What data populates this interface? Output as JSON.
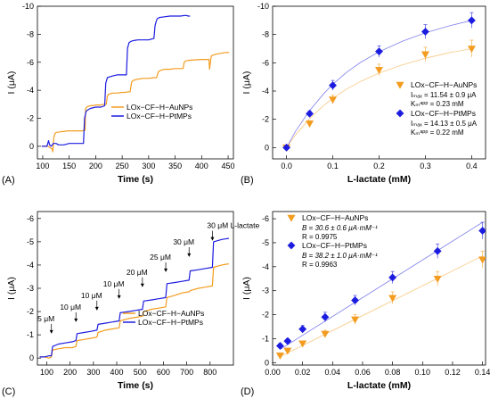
{
  "chart_data": [
    {
      "id": "A",
      "panel_label": "(A)",
      "type": "line",
      "xlabel": "Time (s)",
      "ylabel": "I (μA)",
      "xlim": [
        90,
        460
      ],
      "ylim": [
        -10,
        0.9
      ],
      "y_reversed": true,
      "xticks": [
        100,
        150,
        200,
        250,
        300,
        350,
        400,
        450
      ],
      "yticks": [
        -10,
        -8,
        -6,
        -4,
        -2,
        0
      ],
      "series": [
        {
          "name": "LOx−CF−H−AuNPs",
          "color": "#f39c1f",
          "x": [
            98,
            110,
            118,
            119,
            121,
            123,
            126,
            130,
            135,
            140,
            145,
            150,
            155,
            160,
            165,
            170,
            175,
            180,
            181,
            183,
            186,
            190,
            195,
            200,
            210,
            215,
            220,
            222,
            224,
            227,
            232,
            240,
            250,
            255,
            265,
            268,
            271,
            275,
            280,
            290,
            300,
            310,
            315,
            318,
            321,
            325,
            330,
            340,
            350,
            360,
            365,
            367,
            370,
            380,
            400,
            414,
            415,
            418,
            420,
            430,
            445,
            452
          ],
          "y": [
            0,
            0,
            0.2,
            0.4,
            -0.6,
            -0.9,
            -1.0,
            -1.0,
            -1.05,
            -1.05,
            -1.1,
            -1.1,
            -1.1,
            -1.1,
            -1.1,
            -1.1,
            -1.1,
            -1.15,
            -2.7,
            -2.8,
            -2.85,
            -2.9,
            -2.9,
            -2.95,
            -2.95,
            -3.0,
            -3.0,
            -3.6,
            -3.7,
            -3.75,
            -3.8,
            -3.8,
            -3.85,
            -3.85,
            -3.9,
            -4.6,
            -4.7,
            -4.75,
            -4.8,
            -4.85,
            -4.85,
            -4.9,
            -4.9,
            -5.3,
            -5.4,
            -5.45,
            -5.5,
            -5.5,
            -5.55,
            -5.55,
            -5.55,
            -6.0,
            -6.1,
            -6.15,
            -6.2,
            -6.2,
            -5.5,
            -6.4,
            -6.5,
            -6.6,
            -6.7,
            -6.7
          ]
        },
        {
          "name": "LOx−CF−H−PtMPs",
          "color": "#1c1ce0",
          "x": [
            98,
            108,
            111,
            113,
            116,
            120,
            125,
            130,
            140,
            150,
            160,
            170,
            177,
            179,
            182,
            185,
            190,
            200,
            210,
            217,
            219,
            222,
            226,
            230,
            240,
            250,
            258,
            260,
            263,
            267,
            272,
            280,
            290,
            300,
            310,
            312,
            314,
            316,
            320,
            330,
            340,
            350,
            360,
            370,
            375,
            378
          ],
          "y": [
            0,
            0,
            -0.4,
            -0.1,
            0,
            -0.2,
            -0.2,
            -0.1,
            -0.1,
            -0.2,
            -0.2,
            -0.2,
            -0.2,
            -2.0,
            -2.5,
            -2.6,
            -2.7,
            -2.8,
            -2.8,
            -2.9,
            -4.5,
            -4.9,
            -4.95,
            -5.0,
            -5.1,
            -5.1,
            -5.1,
            -7.0,
            -7.4,
            -7.5,
            -7.55,
            -7.6,
            -7.6,
            -7.6,
            -7.7,
            -8.6,
            -8.9,
            -9.1,
            -9.2,
            -9.25,
            -9.3,
            -9.3,
            -9.3,
            -9.35,
            -9.3,
            -9.3
          ]
        }
      ]
    },
    {
      "id": "B",
      "panel_label": "(B)",
      "type": "scatter",
      "xlabel": "L-lactate (mM)",
      "ylabel": "I (μA)",
      "xlim": [
        -0.03,
        0.43
      ],
      "ylim": [
        -10,
        0.8
      ],
      "y_reversed": true,
      "xticks": [
        0.0,
        0.1,
        0.2,
        0.3,
        0.4
      ],
      "yticks": [
        -10,
        -8,
        -6,
        -4,
        -2,
        0
      ],
      "series": [
        {
          "name": "LOx−CF−H−AuNPs",
          "color": "#f39c1f",
          "marker": "triangle-down",
          "x": [
            0.0,
            0.05,
            0.1,
            0.2,
            0.3,
            0.4
          ],
          "y": [
            0.0,
            -1.7,
            -3.4,
            -5.5,
            -6.6,
            -7.0
          ],
          "err": [
            0.15,
            0.2,
            0.3,
            0.4,
            0.5,
            0.6
          ],
          "fit_x": [
            0.0,
            0.02,
            0.05,
            0.08,
            0.1,
            0.13,
            0.16,
            0.2,
            0.25,
            0.3,
            0.35,
            0.4
          ],
          "fit_y": [
            0.0,
            -0.92,
            -2.05,
            -2.97,
            -3.49,
            -4.14,
            -4.68,
            -5.27,
            -5.85,
            -6.32,
            -6.7,
            -7.0
          ]
        },
        {
          "name": "LOx−CF−H−PtMPs",
          "color": "#1c1ce0",
          "marker": "diamond",
          "x": [
            0.0,
            0.05,
            0.1,
            0.2,
            0.3,
            0.4
          ],
          "y": [
            0.0,
            -2.4,
            -4.4,
            -6.8,
            -8.2,
            -9.0
          ],
          "err": [
            0.15,
            0.2,
            0.35,
            0.4,
            0.5,
            0.55
          ],
          "fit_x": [
            0.0,
            0.02,
            0.05,
            0.08,
            0.1,
            0.13,
            0.16,
            0.2,
            0.25,
            0.3,
            0.35,
            0.4
          ],
          "fit_y": [
            0.0,
            -1.18,
            -2.63,
            -3.8,
            -4.48,
            -5.33,
            -6.03,
            -6.78,
            -7.52,
            -8.12,
            -8.6,
            -9.0
          ]
        }
      ],
      "legend": [
        {
          "series": "LOx−CF−H−AuNPs",
          "lines": [
            "Iₘₐₓ = 11.54 ± 0.9 μA",
            "Kₘᵃᵖᵖ = 0.23 mM"
          ]
        },
        {
          "series": "LOx−CF−H−PtMPs",
          "lines": [
            "Iₘₐₓ = 14.13 ± 0.5 μA",
            "Kₘᵃᵖᵖ = 0.22 mM"
          ]
        }
      ]
    },
    {
      "id": "C",
      "panel_label": "(C)",
      "type": "line",
      "xlabel": "Time (s)",
      "ylabel": "I (μA)",
      "xlim": [
        60,
        900
      ],
      "ylim": [
        -6.3,
        0.3
      ],
      "y_reversed": true,
      "xticks": [
        100,
        200,
        300,
        400,
        500,
        600,
        700,
        800
      ],
      "yticks": [
        -6,
        -5,
        -4,
        -3,
        -2,
        -1,
        0
      ],
      "annotations": [
        {
          "text": "5 μM",
          "x": 120,
          "y": -1.2
        },
        {
          "text": "10 μM",
          "x": 225,
          "y": -1.7
        },
        {
          "text": "10 μM",
          "x": 315,
          "y": -2.2
        },
        {
          "text": "10 μM",
          "x": 410,
          "y": -2.7
        },
        {
          "text": "20 μM",
          "x": 510,
          "y": -3.2
        },
        {
          "text": "25 μM",
          "x": 610,
          "y": -3.85
        },
        {
          "text": "30 μM",
          "x": 710,
          "y": -4.5
        },
        {
          "text": "30 μM L-lactate",
          "x": 810,
          "y": -5.2
        }
      ],
      "series": [
        {
          "name": "LOx−CF−H−AuNPs",
          "color": "#f39c1f",
          "x": [
            70,
            90,
            110,
            120,
            125,
            150,
            180,
            210,
            225,
            230,
            260,
            290,
            315,
            320,
            350,
            380,
            410,
            415,
            450,
            480,
            510,
            515,
            550,
            580,
            610,
            615,
            650,
            680,
            710,
            715,
            750,
            780,
            810,
            815,
            850,
            880
          ],
          "y": [
            -0.05,
            -0.05,
            0.0,
            -0.05,
            -0.35,
            -0.4,
            -0.45,
            -0.45,
            -0.5,
            -0.75,
            -0.8,
            -0.85,
            -0.9,
            -1.1,
            -1.2,
            -1.25,
            -1.3,
            -1.6,
            -1.7,
            -1.75,
            -1.8,
            -2.0,
            -2.1,
            -2.15,
            -2.2,
            -2.6,
            -2.7,
            -2.8,
            -2.85,
            -2.9,
            -3.0,
            -3.05,
            -3.1,
            -3.9,
            -4.0,
            -4.05
          ]
        },
        {
          "name": "LOx−CF−H−PtMPs",
          "color": "#1c1ce0",
          "x": [
            70,
            90,
            110,
            120,
            125,
            150,
            180,
            210,
            225,
            230,
            260,
            290,
            315,
            320,
            350,
            380,
            410,
            415,
            450,
            480,
            510,
            515,
            550,
            580,
            610,
            615,
            650,
            680,
            710,
            715,
            750,
            780,
            810,
            815,
            850,
            880
          ],
          "y": [
            -0.05,
            -0.05,
            -0.1,
            -0.1,
            -0.5,
            -0.6,
            -0.65,
            -0.7,
            -0.75,
            -1.05,
            -1.1,
            -1.15,
            -1.2,
            -1.45,
            -1.5,
            -1.55,
            -1.6,
            -1.95,
            -2.0,
            -2.05,
            -2.1,
            -2.45,
            -2.5,
            -2.55,
            -2.6,
            -3.2,
            -3.25,
            -3.3,
            -3.35,
            -3.75,
            -3.8,
            -3.85,
            -3.9,
            -5.0,
            -5.1,
            -5.15
          ]
        }
      ]
    },
    {
      "id": "D",
      "panel_label": "(D)",
      "type": "scatter",
      "xlabel": "L-lactate (mM)",
      "ylabel": "I (μA)",
      "xlim": [
        0.0,
        0.142
      ],
      "ylim": [
        -6.3,
        0.1
      ],
      "y_reversed": true,
      "xticks": [
        0.0,
        0.02,
        0.04,
        0.06,
        0.08,
        0.1,
        0.12,
        0.14
      ],
      "yticks": [
        -6,
        -5,
        -4,
        -3,
        -2,
        -1,
        0
      ],
      "series": [
        {
          "name": "LOx−CF−H−AuNPs",
          "color": "#f39c1f",
          "marker": "triangle-down",
          "x": [
            0.005,
            0.01,
            0.02,
            0.035,
            0.055,
            0.08,
            0.11,
            0.14
          ],
          "y": [
            -0.3,
            -0.5,
            -0.8,
            -1.2,
            -1.8,
            -2.7,
            -3.5,
            -4.3
          ],
          "err": [
            0.1,
            0.1,
            0.1,
            0.15,
            0.2,
            0.25,
            0.3,
            0.35
          ],
          "fit_x": [
            0.005,
            0.14
          ],
          "fit_y": [
            -0.25,
            -4.45
          ]
        },
        {
          "name": "LOx−CF−H−PtMPs",
          "color": "#1c1ce0",
          "marker": "diamond",
          "x": [
            0.005,
            0.01,
            0.02,
            0.035,
            0.055,
            0.08,
            0.11,
            0.14
          ],
          "y": [
            -0.7,
            -0.9,
            -1.4,
            -1.9,
            -2.6,
            -3.55,
            -4.65,
            -5.5
          ],
          "err": [
            0.1,
            0.1,
            0.15,
            0.2,
            0.2,
            0.25,
            0.3,
            0.35
          ],
          "fit_x": [
            0.005,
            0.14
          ],
          "fit_y": [
            -0.55,
            -5.85
          ]
        }
      ],
      "legend": [
        {
          "series": "LOx−CF−H−AuNPs",
          "lines": [
            "B = 30.6 ± 0.6 μA·mM⁻¹",
            "R = 0.9975"
          ]
        },
        {
          "series": "LOx−CF−H−PtMPs",
          "lines": [
            "B = 38.2 ± 1.0 μA·mM⁻¹",
            "R = 0.9963"
          ]
        }
      ]
    }
  ]
}
